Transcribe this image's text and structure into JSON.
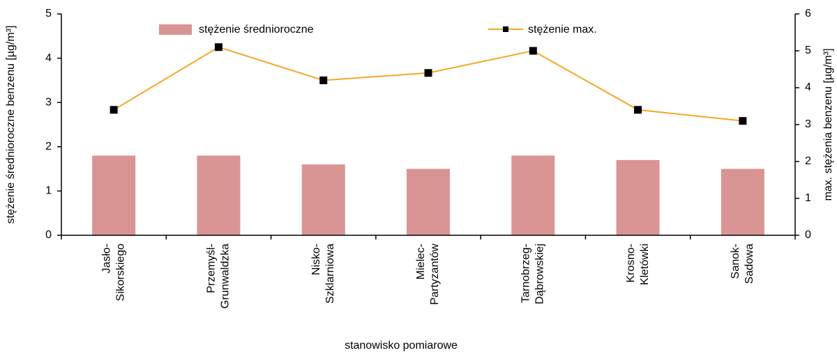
{
  "chart_data": {
    "type": "bar",
    "x_label": "stanowisko pomiarowe",
    "y_label": "stężenie średnioroczne benzenu [µg/m³]",
    "y2_label": "max. stężenia  benzenu [µg/m³]",
    "categories": [
      [
        "Jasło-",
        "Sikorskiego"
      ],
      [
        "Przemyśl-",
        "Grunwaldzka"
      ],
      [
        "Nisko-",
        "Szklarniowa"
      ],
      [
        "Mielec-",
        "Partyzantów"
      ],
      [
        "Tarnobrzeg-",
        "Dąbrowskiej"
      ],
      [
        "Krosno-",
        "Kletówki"
      ],
      [
        "Sanok-",
        "Sadowa"
      ]
    ],
    "series": [
      {
        "name": "stężenie średnioroczne",
        "type": "bar",
        "color": "#d99594",
        "values": [
          1.8,
          1.8,
          1.6,
          1.5,
          1.8,
          1.7,
          1.5
        ]
      },
      {
        "name": "stężenie max.",
        "type": "line",
        "axis": "y2",
        "color": "#f5a623",
        "marker_color": "#000000",
        "values": [
          3.4,
          5.1,
          4.2,
          4.4,
          5.0,
          3.4,
          3.1
        ]
      }
    ],
    "ylim": [
      0,
      5
    ],
    "yticks": [
      0,
      1,
      2,
      3,
      4,
      5
    ],
    "y2lim": [
      0,
      6
    ],
    "y2ticks": [
      0,
      1,
      2,
      3,
      4,
      5,
      6
    ],
    "grid": false
  }
}
